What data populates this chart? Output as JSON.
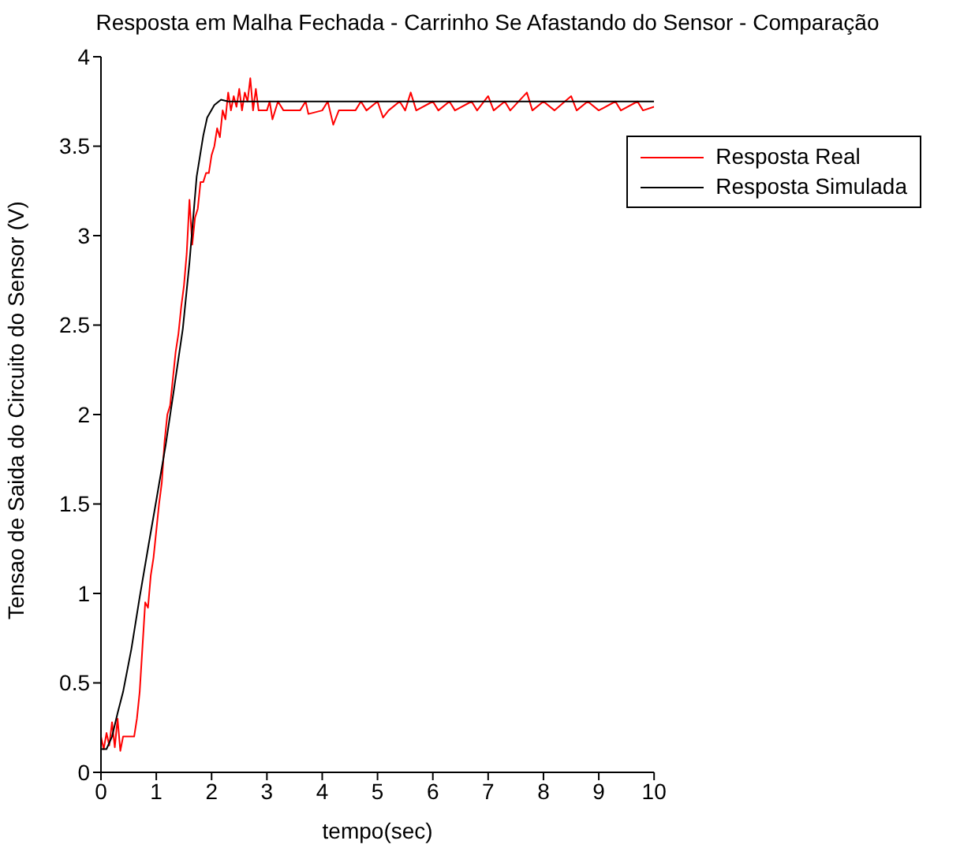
{
  "chart_data": {
    "type": "line",
    "title": "Resposta em Malha Fechada - Carrinho Se Afastando do Sensor - Comparação",
    "xlabel": "tempo(sec)",
    "ylabel": "Tensao de Saida do Circuito do Sensor (V)",
    "xlim": [
      0,
      10
    ],
    "xticks": [
      0,
      1,
      2,
      3,
      4,
      5,
      6,
      7,
      8,
      9,
      10
    ],
    "ylim": [
      0,
      4
    ],
    "yticks": [
      0,
      0.5,
      1,
      1.5,
      2,
      2.5,
      3,
      3.5,
      4
    ],
    "grid": false,
    "legend": "top right",
    "marker": "none",
    "line_style": "solid",
    "series": [
      {
        "name": "Resposta Real",
        "color": "#ff0000",
        "x": [
          0,
          0.05,
          0.1,
          0.15,
          0.2,
          0.25,
          0.3,
          0.35,
          0.4,
          0.5,
          0.6,
          0.65,
          0.7,
          0.75,
          0.8,
          0.85,
          0.9,
          0.95,
          1.0,
          1.05,
          1.1,
          1.15,
          1.2,
          1.25,
          1.3,
          1.35,
          1.4,
          1.45,
          1.5,
          1.55,
          1.6,
          1.65,
          1.7,
          1.75,
          1.8,
          1.85,
          1.9,
          1.95,
          2.0,
          2.05,
          2.1,
          2.15,
          2.2,
          2.25,
          2.3,
          2.35,
          2.4,
          2.45,
          2.5,
          2.55,
          2.6,
          2.65,
          2.7,
          2.75,
          2.8,
          2.85,
          3.0,
          3.05,
          3.1,
          3.2,
          3.3,
          3.6,
          3.7,
          3.75,
          4.0,
          4.1,
          4.2,
          4.3,
          4.6,
          4.7,
          4.8,
          5.0,
          5.1,
          5.2,
          5.4,
          5.5,
          5.6,
          5.7,
          6.0,
          6.1,
          6.3,
          6.4,
          6.7,
          6.8,
          7.0,
          7.1,
          7.3,
          7.4,
          7.7,
          7.8,
          8.0,
          8.2,
          8.5,
          8.6,
          8.8,
          9.0,
          9.3,
          9.4,
          9.7,
          9.8,
          10
        ],
        "values": [
          0.2,
          0.13,
          0.22,
          0.15,
          0.28,
          0.14,
          0.3,
          0.12,
          0.2,
          0.2,
          0.2,
          0.3,
          0.45,
          0.7,
          0.95,
          0.92,
          1.1,
          1.2,
          1.35,
          1.5,
          1.62,
          1.85,
          2.0,
          2.05,
          2.2,
          2.35,
          2.45,
          2.6,
          2.72,
          2.9,
          3.2,
          2.95,
          3.1,
          3.15,
          3.3,
          3.3,
          3.35,
          3.35,
          3.45,
          3.5,
          3.6,
          3.55,
          3.7,
          3.65,
          3.8,
          3.7,
          3.78,
          3.72,
          3.82,
          3.7,
          3.8,
          3.75,
          3.88,
          3.7,
          3.82,
          3.7,
          3.7,
          3.75,
          3.65,
          3.75,
          3.7,
          3.7,
          3.75,
          3.68,
          3.7,
          3.75,
          3.62,
          3.7,
          3.7,
          3.75,
          3.7,
          3.75,
          3.66,
          3.7,
          3.75,
          3.7,
          3.8,
          3.7,
          3.75,
          3.7,
          3.75,
          3.7,
          3.75,
          3.7,
          3.78,
          3.7,
          3.75,
          3.7,
          3.8,
          3.7,
          3.75,
          3.7,
          3.78,
          3.7,
          3.75,
          3.7,
          3.75,
          3.7,
          3.75,
          3.7,
          3.72
        ]
      },
      {
        "name": "Resposta Simulada",
        "color": "#000000",
        "x": [
          0,
          0.1,
          0.2,
          0.3,
          0.4,
          0.55,
          0.7,
          0.86,
          1.0,
          1.17,
          1.3,
          1.48,
          1.6,
          1.73,
          1.85,
          1.92,
          2.05,
          2.17,
          2.3,
          10
        ],
        "values": [
          0.13,
          0.13,
          0.2,
          0.33,
          0.45,
          0.69,
          0.98,
          1.27,
          1.52,
          1.83,
          2.1,
          2.48,
          2.85,
          3.33,
          3.56,
          3.66,
          3.73,
          3.76,
          3.75,
          3.75
        ]
      }
    ]
  }
}
